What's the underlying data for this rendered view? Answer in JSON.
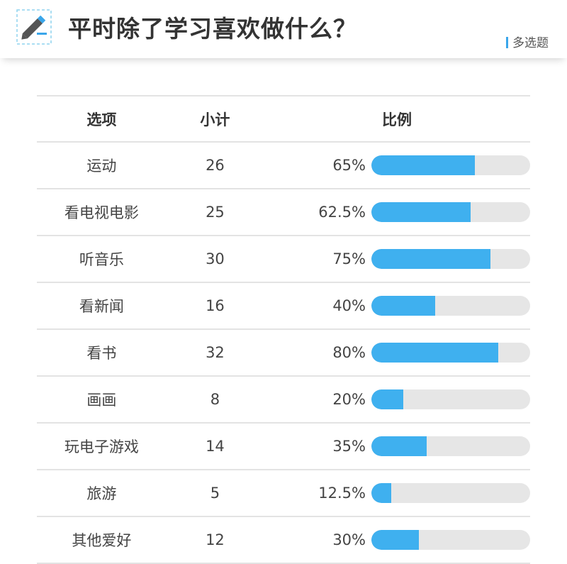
{
  "header": {
    "title": "平时除了学习喜欢做什么？",
    "question_type": "多选题",
    "icon": "pencil-icon"
  },
  "colors": {
    "bar_fill": "#3fb0ef",
    "bar_track": "#e6e6e6",
    "accent": "#3aa6ea"
  },
  "table": {
    "headers": [
      "选项",
      "小计",
      "比例"
    ]
  },
  "chart_data": {
    "type": "bar",
    "orientation": "horizontal",
    "categories": [
      "运动",
      "看电视电影",
      "听音乐",
      "看新闻",
      "看书",
      "画画",
      "玩电子游戏",
      "旅游",
      "其他爱好"
    ],
    "counts": [
      26,
      25,
      30,
      16,
      32,
      8,
      14,
      5,
      12
    ],
    "values": [
      65,
      62.5,
      75,
      40,
      80,
      20,
      35,
      12.5,
      30
    ],
    "value_labels": [
      "65%",
      "62.5%",
      "75%",
      "40%",
      "80%",
      "20%",
      "35%",
      "12.5%",
      "30%"
    ],
    "xlim": [
      0,
      100
    ]
  }
}
